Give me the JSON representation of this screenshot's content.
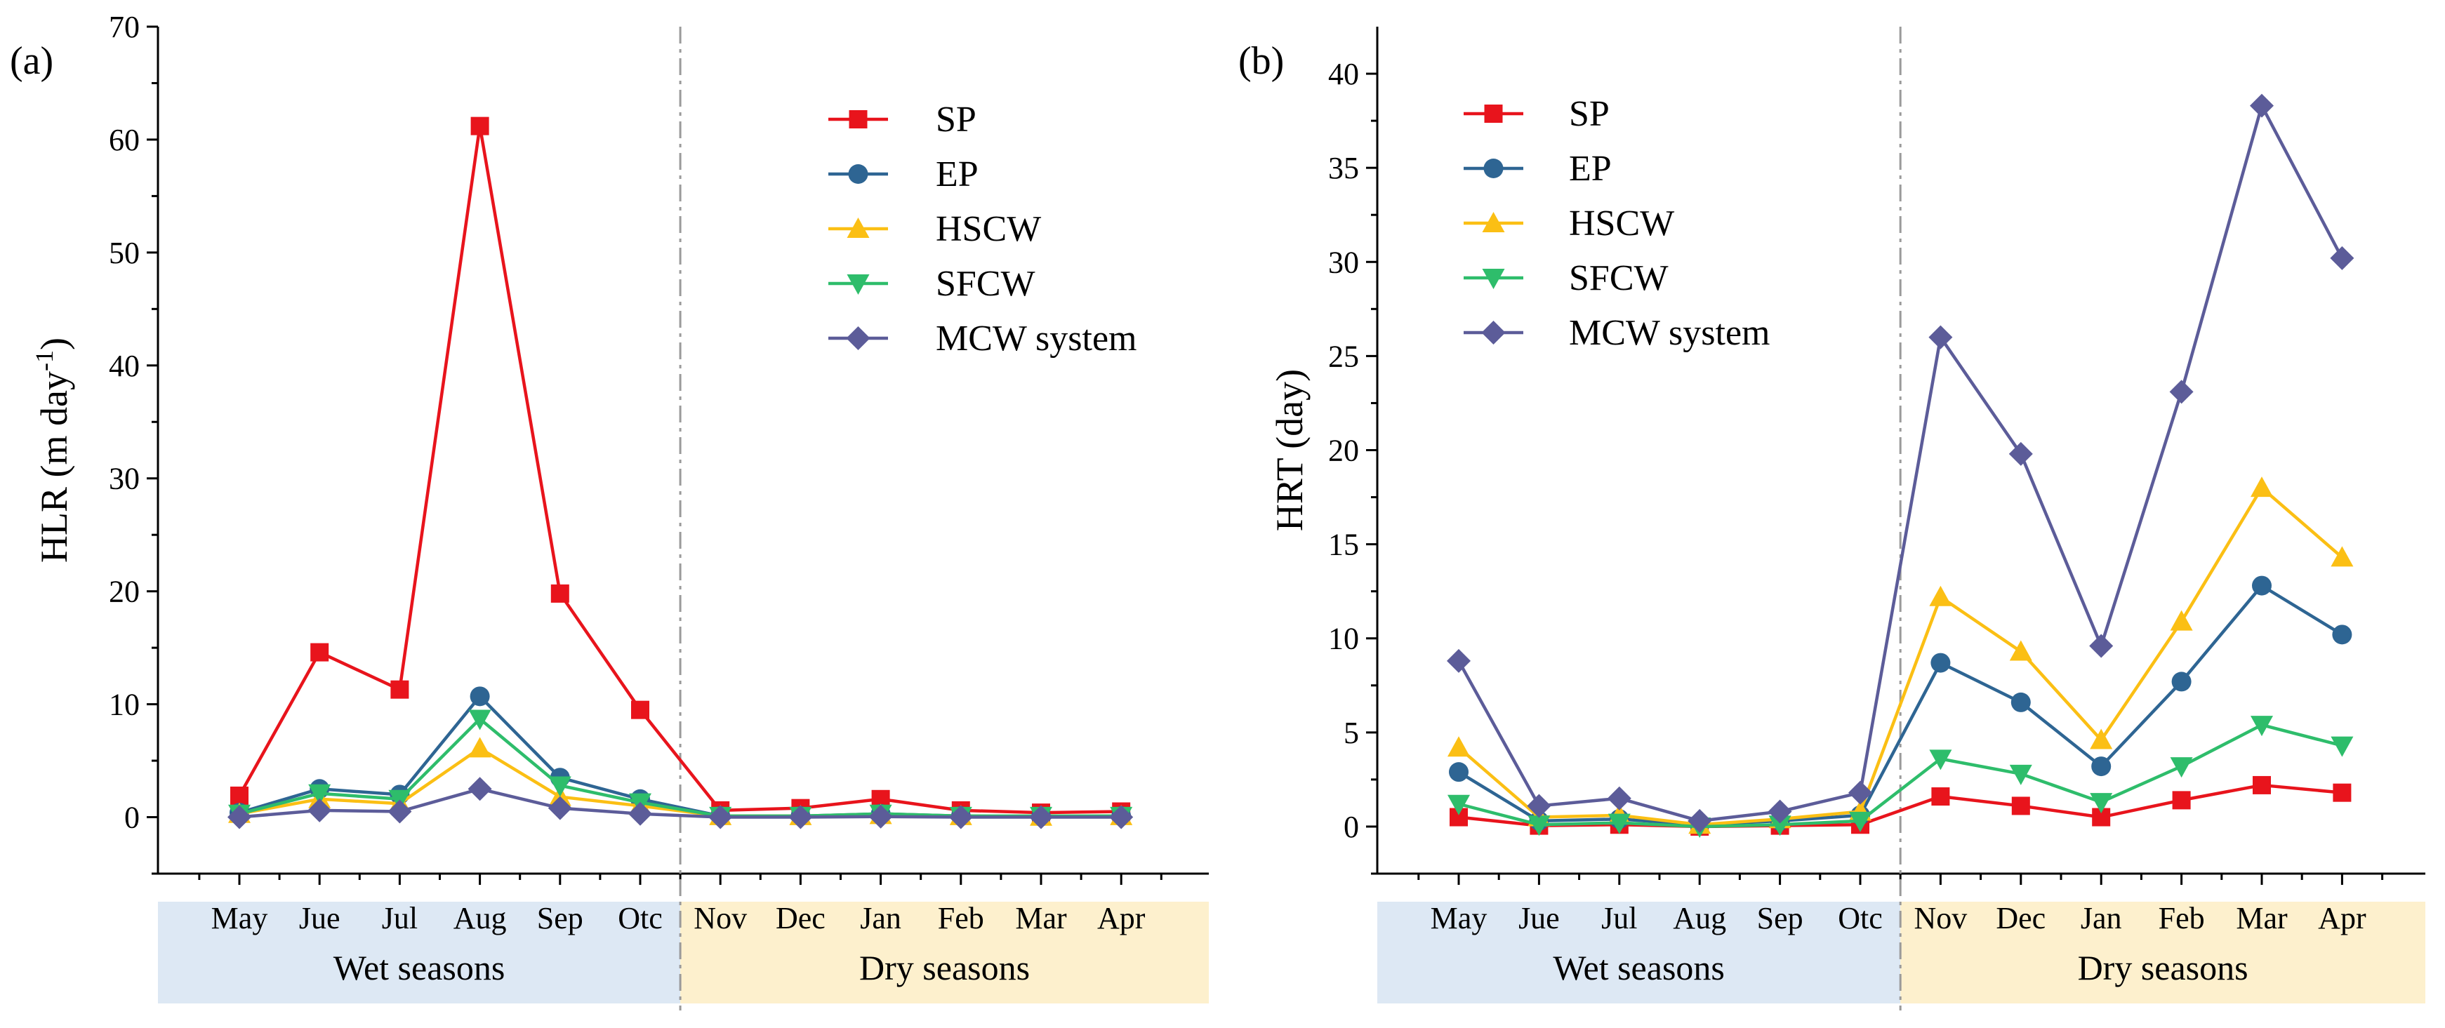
{
  "chart_data": [
    {
      "type": "line",
      "panel_label": "(a)",
      "ylabel": "HLR (m day",
      "ylabel_sup": "-1",
      "ylabel_end": ")",
      "ylim": [
        -5,
        70
      ],
      "yticks": [
        0,
        10,
        20,
        30,
        40,
        50,
        60,
        70
      ],
      "categories": [
        "May",
        "Jue",
        "Jul",
        "Aug",
        "Sep",
        "Otc",
        "Nov",
        "Dec",
        "Jan",
        "Feb",
        "Mar",
        "Apr"
      ],
      "season_groups": [
        {
          "label": "Wet seasons",
          "start": 0,
          "end": 5,
          "color": "#dde8f4"
        },
        {
          "label": "Dry seasons",
          "start": 6,
          "end": 11,
          "color": "#fdf0cd"
        }
      ],
      "legend_position": "top-right",
      "series": [
        {
          "name": "SP",
          "color": "#e8141c",
          "marker": "square",
          "values": [
            1.9,
            14.6,
            11.3,
            61.2,
            19.8,
            9.5,
            0.6,
            0.8,
            1.6,
            0.6,
            0.4,
            0.5
          ]
        },
        {
          "name": "EP",
          "color": "#2e6593",
          "marker": "circle",
          "values": [
            0.4,
            2.5,
            2.0,
            10.7,
            3.5,
            1.6,
            0.1,
            0.1,
            0.3,
            0.1,
            0.05,
            0.1
          ]
        },
        {
          "name": "HSCW",
          "color": "#fbbf14",
          "marker": "triangle-up",
          "values": [
            0.3,
            1.6,
            1.2,
            6.1,
            1.8,
            1.0,
            0.1,
            0.1,
            0.2,
            0.1,
            0.05,
            0.1
          ]
        },
        {
          "name": "SFCW",
          "color": "#2ebd6b",
          "marker": "triangle-down",
          "values": [
            0.3,
            2.1,
            1.6,
            8.7,
            2.8,
            1.3,
            0.1,
            0.1,
            0.3,
            0.1,
            0.1,
            0.1
          ]
        },
        {
          "name": "MCW system",
          "color": "#5c5c99",
          "marker": "diamond",
          "values": [
            0.0,
            0.6,
            0.5,
            2.5,
            0.8,
            0.3,
            0.0,
            0.0,
            0.05,
            0.0,
            0.0,
            0.0
          ]
        }
      ]
    },
    {
      "type": "line",
      "panel_label": "(b)",
      "ylabel": "HRT (day)",
      "ylabel_sup": "",
      "ylabel_end": "",
      "ylim": [
        -2.5,
        42.5
      ],
      "yticks": [
        0,
        5,
        10,
        15,
        20,
        25,
        30,
        35,
        40
      ],
      "categories": [
        "May",
        "Jue",
        "Jul",
        "Aug",
        "Sep",
        "Otc",
        "Nov",
        "Dec",
        "Jan",
        "Feb",
        "Mar",
        "Apr"
      ],
      "season_groups": [
        {
          "label": "Wet seasons",
          "start": 0,
          "end": 5,
          "color": "#dde8f4"
        },
        {
          "label": "Dry seasons",
          "start": 6,
          "end": 11,
          "color": "#fdf0cd"
        }
      ],
      "legend_position": "top-left",
      "series": [
        {
          "name": "SP",
          "color": "#e8141c",
          "marker": "square",
          "values": [
            0.5,
            0.05,
            0.1,
            0.0,
            0.05,
            0.1,
            1.6,
            1.1,
            0.5,
            1.4,
            2.2,
            1.8
          ]
        },
        {
          "name": "EP",
          "color": "#2e6593",
          "marker": "circle",
          "values": [
            2.9,
            0.3,
            0.4,
            0.1,
            0.3,
            0.6,
            8.7,
            6.6,
            3.2,
            7.7,
            12.8,
            10.2
          ]
        },
        {
          "name": "HSCW",
          "color": "#fbbf14",
          "marker": "triangle-up",
          "values": [
            4.2,
            0.5,
            0.6,
            0.1,
            0.4,
            0.8,
            12.2,
            9.3,
            4.6,
            10.9,
            18.0,
            14.3
          ]
        },
        {
          "name": "SFCW",
          "color": "#2ebd6b",
          "marker": "triangle-down",
          "values": [
            1.2,
            0.1,
            0.2,
            0.0,
            0.1,
            0.3,
            3.6,
            2.8,
            1.3,
            3.2,
            5.4,
            4.3
          ]
        },
        {
          "name": "MCW system",
          "color": "#5c5c99",
          "marker": "diamond",
          "values": [
            8.8,
            1.1,
            1.5,
            0.3,
            0.8,
            1.8,
            26.0,
            19.8,
            9.6,
            23.1,
            38.3,
            30.2
          ]
        }
      ]
    }
  ]
}
